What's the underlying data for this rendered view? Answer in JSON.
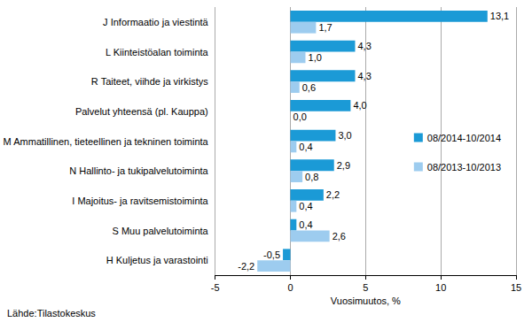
{
  "chart_data": {
    "type": "bar",
    "orientation": "horizontal",
    "xlabel": "Vuosimuutos, %",
    "annotations": [
      "Lähde:Tilastokeskus"
    ],
    "categories": [
      "J Informaatio ja viestintä",
      "L Kiinteistöalan toiminta",
      "R Taiteet, viihde ja virkistys",
      "Palvelut yhteensä (pl. Kauppa)",
      "M Ammatillinen, tieteellinen ja tekninen toiminta",
      "N Hallinto- ja tukipalvelutoiminta",
      "I Majoitus- ja ravitsemistoiminta",
      "S Muu palvelutoiminta",
      "H Kuljetus ja varastointi"
    ],
    "series": [
      {
        "name": "08/2014-10/2014",
        "color": "#1b9ad6",
        "values": [
          13.1,
          4.3,
          4.3,
          4.0,
          3.0,
          2.9,
          2.2,
          0.4,
          -0.5
        ],
        "value_labels": [
          "13,1",
          "4,3",
          "4,3",
          "4,0",
          "3,0",
          "2,9",
          "2,2",
          "0,4",
          "-0,5"
        ]
      },
      {
        "name": "08/2013-10/2013",
        "color": "#9dccef",
        "values": [
          1.7,
          1.0,
          0.6,
          0.0,
          0.4,
          0.8,
          0.4,
          2.6,
          -2.2
        ],
        "value_labels": [
          "1,7",
          "1,0",
          "0,6",
          "0,0",
          "0,4",
          "0,8",
          "0,4",
          "2,6",
          "-2,2"
        ]
      }
    ],
    "xlim": [
      -5,
      15
    ],
    "xticks": [
      -5,
      0,
      5,
      10,
      15
    ],
    "grid": true,
    "legend": "right",
    "data_labels": true
  }
}
